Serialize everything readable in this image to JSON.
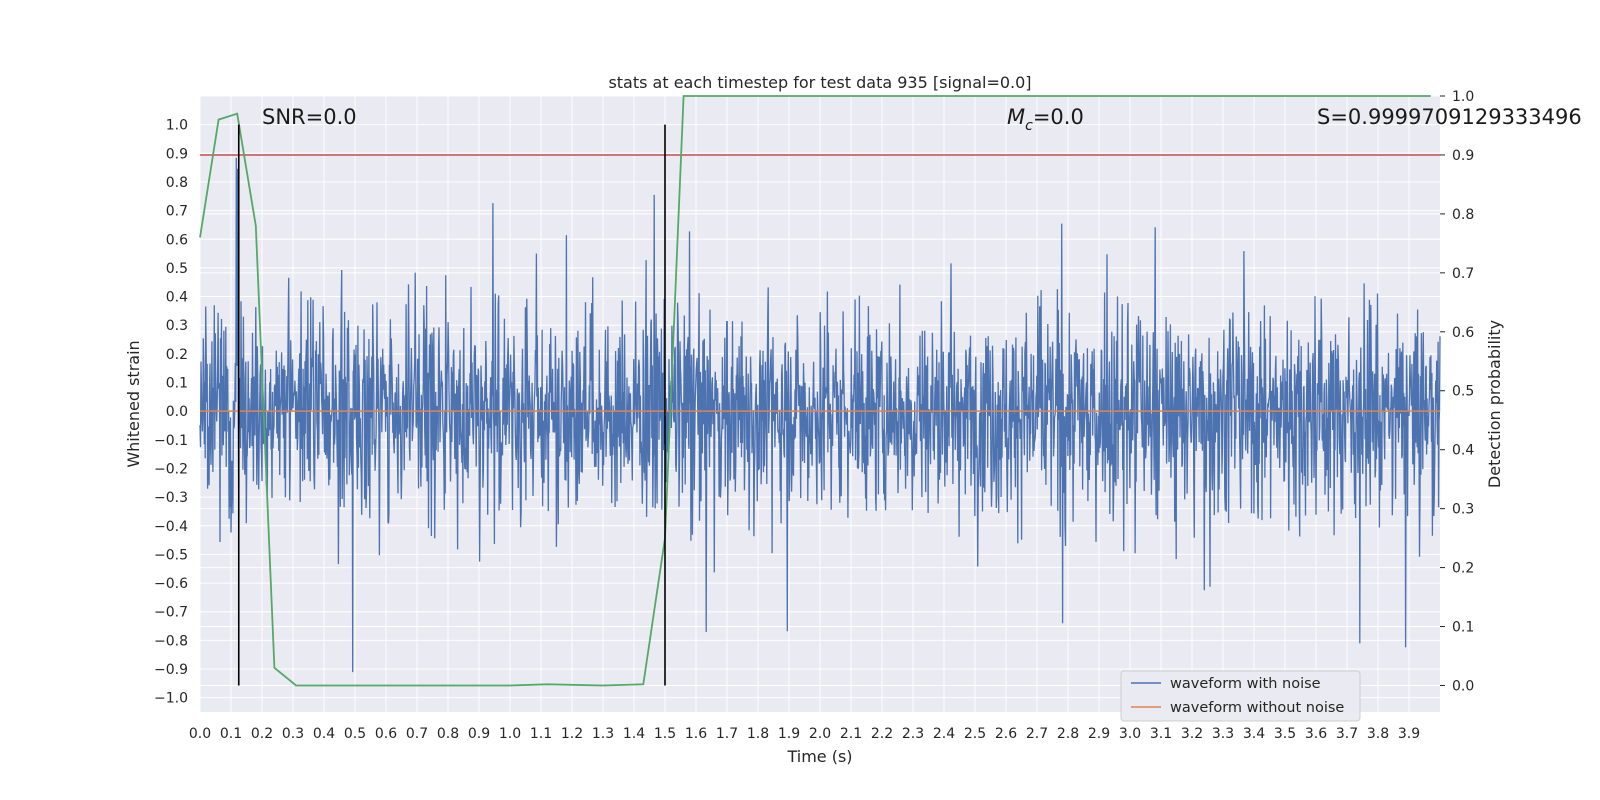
{
  "chart_data": {
    "type": "line",
    "title": "stats at each timestep for test data 935 [signal=0.0]",
    "xlabel": "Time (s)",
    "ylabel": "Whitened strain",
    "y2label": "Detection probability",
    "xlim": [
      0.0,
      4.0
    ],
    "ylim": [
      -1.05,
      1.1
    ],
    "y2lim": [
      -0.045,
      1.0
    ],
    "xticks": [
      "0.0",
      "0.1",
      "0.2",
      "0.3",
      "0.4",
      "0.5",
      "0.6",
      "0.7",
      "0.8",
      "0.9",
      "1.0",
      "1.1",
      "1.2",
      "1.3",
      "1.4",
      "1.5",
      "1.6",
      "1.7",
      "1.8",
      "1.9",
      "2.0",
      "2.1",
      "2.2",
      "2.3",
      "2.4",
      "2.5",
      "2.6",
      "2.7",
      "2.8",
      "2.9",
      "3.0",
      "3.1",
      "3.2",
      "3.3",
      "3.4",
      "3.5",
      "3.6",
      "3.7",
      "3.8",
      "3.9"
    ],
    "yticks": [
      "1.0",
      "0.9",
      "0.8",
      "0.7",
      "0.6",
      "0.5",
      "0.4",
      "0.3",
      "0.2",
      "0.1",
      "0.0",
      "−0.1",
      "−0.2",
      "−0.3",
      "−0.4",
      "−0.5",
      "−0.6",
      "−0.7",
      "−0.8",
      "−0.9",
      "−1.0"
    ],
    "y2ticks": [
      "1.0",
      "0.9",
      "0.8",
      "0.7",
      "0.6",
      "0.5",
      "0.4",
      "0.3",
      "0.2",
      "0.1",
      "0.0"
    ],
    "grid": true,
    "legend_position": "lower-right",
    "series": [
      {
        "name": "waveform with noise",
        "color": "#4c72b0",
        "kind": "noise",
        "amplitude_range": [
          -1.0,
          1.0
        ]
      },
      {
        "name": "waveform without noise",
        "color": "#dd8452",
        "x": [
          0.0,
          4.0
        ],
        "y": [
          0.0,
          0.0
        ]
      },
      {
        "color": "#55a868",
        "axis": "right",
        "x": [
          0.0,
          0.06,
          0.12,
          0.18,
          0.24,
          0.31,
          0.5,
          1.0,
          1.12,
          1.3,
          1.43,
          1.5,
          1.56,
          2.0,
          3.0,
          3.97
        ],
        "y": [
          0.76,
          0.96,
          0.97,
          0.78,
          0.03,
          0.0,
          0.0,
          0.0,
          0.002,
          0.0,
          0.002,
          0.25,
          1.0,
          1.0,
          1.0,
          1.0
        ]
      }
    ],
    "hlines": [
      {
        "y2": 0.9,
        "color": "#c44e52"
      }
    ],
    "vlines": [
      {
        "x": 0.125,
        "color": "#000000"
      },
      {
        "x": 1.5,
        "color": "#000000"
      }
    ],
    "annotations": {
      "snr": "SNR=0.0",
      "mc_symbol": "M",
      "mc_sub": "c",
      "mc_value": "=0.0",
      "s_value": "S=0.9999709129333496"
    },
    "legend": [
      "waveform with noise",
      "waveform without noise"
    ]
  }
}
